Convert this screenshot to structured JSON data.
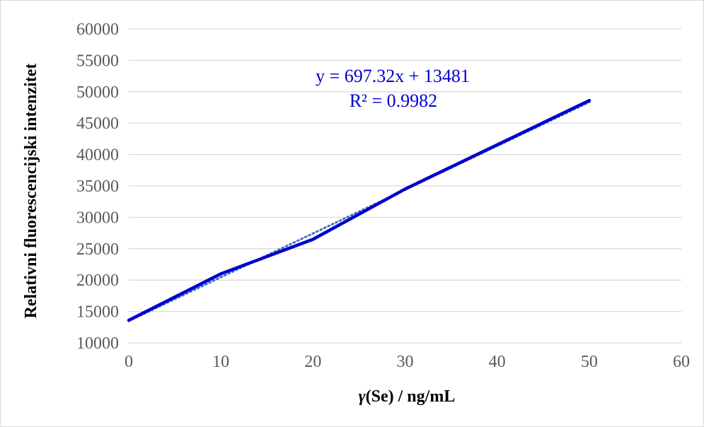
{
  "chart_data": {
    "type": "line",
    "xlabel_symbol": "γ",
    "xlabel_rest": "(Se) / ng/mL",
    "ylabel": "Relativni fluorescencijski intenzitet",
    "xlim": [
      0,
      60
    ],
    "ylim": [
      10000,
      60000
    ],
    "x_ticks": [
      "0",
      "10",
      "20",
      "30",
      "40",
      "50",
      "60"
    ],
    "y_ticks": [
      "10000",
      "15000",
      "20000",
      "25000",
      "30000",
      "35000",
      "40000",
      "45000",
      "50000",
      "55000",
      "60000"
    ],
    "grid": "horizontal",
    "series": [
      {
        "x": [
          0,
          10,
          20,
          30,
          50
        ],
        "y": [
          13600,
          21000,
          26500,
          34500,
          48600
        ],
        "color": "#0000cc"
      }
    ],
    "trendline": {
      "slope": 697.32,
      "intercept": 13481,
      "color": "#4472c4",
      "style": "dotted"
    },
    "annotations": {
      "equation": "y = 697.32x + 13481",
      "r_squared": "R² = 0.9982",
      "color": "#0000cc"
    }
  }
}
